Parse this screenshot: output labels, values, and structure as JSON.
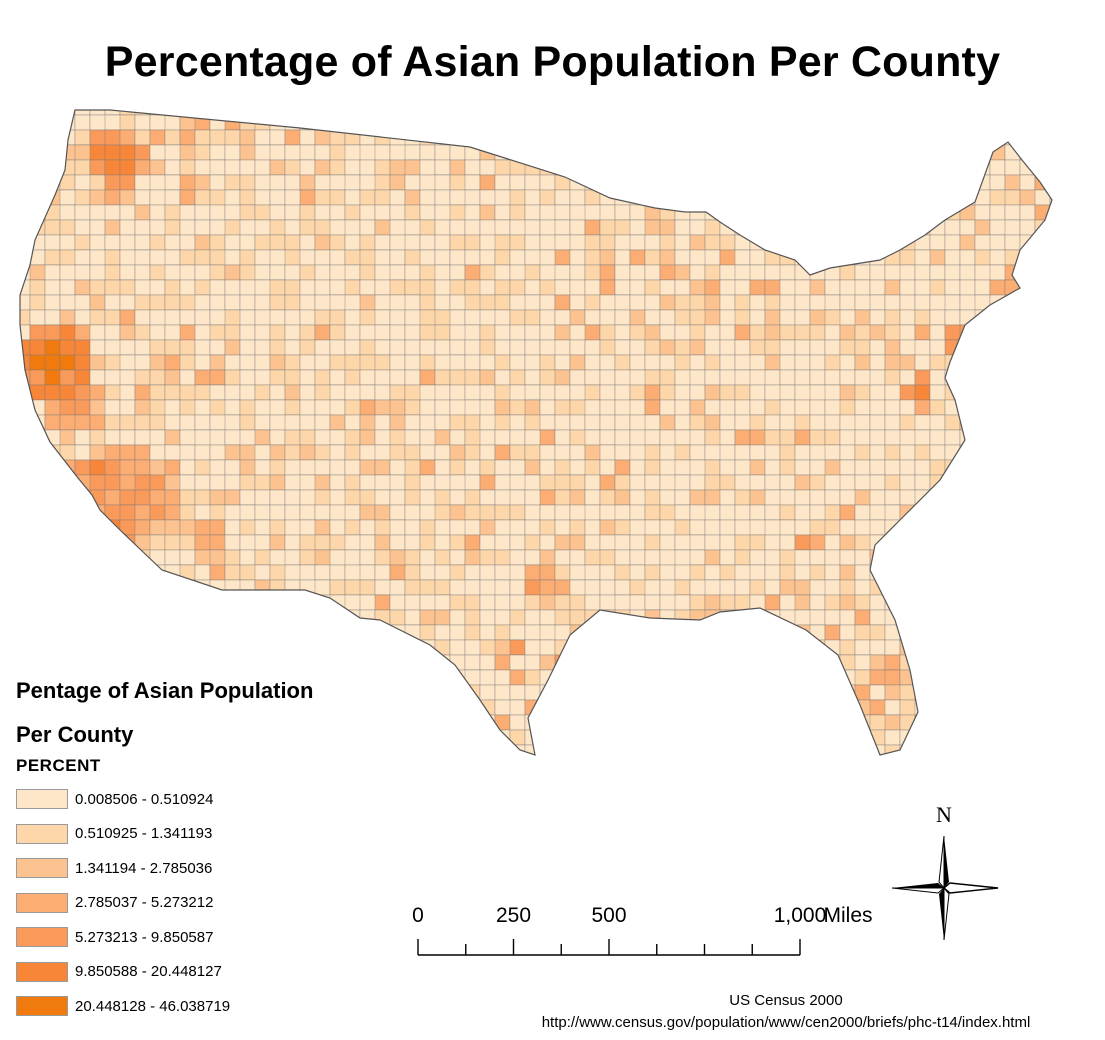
{
  "title": "Percentage of Asian Population Per County",
  "legend": {
    "title_line1": "Pentage of Asian Population",
    "title_line2": "Per County",
    "field": "PERCENT",
    "classes": [
      {
        "label": "0.008506 - 0.510924",
        "color": "#fee6c8"
      },
      {
        "label": "0.510925 - 1.341193",
        "color": "#fdd6aa"
      },
      {
        "label": "1.341194 - 2.785036",
        "color": "#fcc390"
      },
      {
        "label": "2.785037 - 5.273212",
        "color": "#fbad73"
      },
      {
        "label": "5.273213 - 9.850587",
        "color": "#f9995a"
      },
      {
        "label": "9.850588 - 20.448127",
        "color": "#f78639"
      },
      {
        "label": "20.448128 - 46.038719",
        "color": "#f17a0e"
      }
    ]
  },
  "scale_bar": {
    "labels": [
      "0",
      "250",
      "500",
      "1,000"
    ],
    "unit": "Miles",
    "max_value": 1000
  },
  "north_arrow": {
    "label": "N"
  },
  "credits": {
    "line1": "US Census 2000",
    "line2": "http://www.census.gov/population/www/cen2000/briefs/phc-t14/index.html"
  },
  "map": {
    "name": "Contiguous United States counties",
    "dominant_class": 0,
    "border_color": "#7a7a7a"
  },
  "region_classes": [
    {
      "name": "Washington - Seattle area",
      "class": 5
    },
    {
      "name": "California - Bay Area",
      "class": 6
    },
    {
      "name": "California - Los Angeles area",
      "class": 5
    },
    {
      "name": "California - San Diego",
      "class": 4
    },
    {
      "name": "Southern California desert",
      "class": 3
    },
    {
      "name": "Nevada - Las Vegas",
      "class": 3
    },
    {
      "name": "Texas - Houston",
      "class": 5
    },
    {
      "name": "Texas - Dallas",
      "class": 4
    },
    {
      "name": "Georgia - Atlanta",
      "class": 4
    },
    {
      "name": "New York City area",
      "class": 5
    },
    {
      "name": "Washington DC area",
      "class": 5
    },
    {
      "name": "Chicago area",
      "class": 4
    },
    {
      "name": "Minneapolis area",
      "class": 3
    },
    {
      "name": "Boston area",
      "class": 4
    },
    {
      "name": "Florida",
      "class": 2
    }
  ]
}
